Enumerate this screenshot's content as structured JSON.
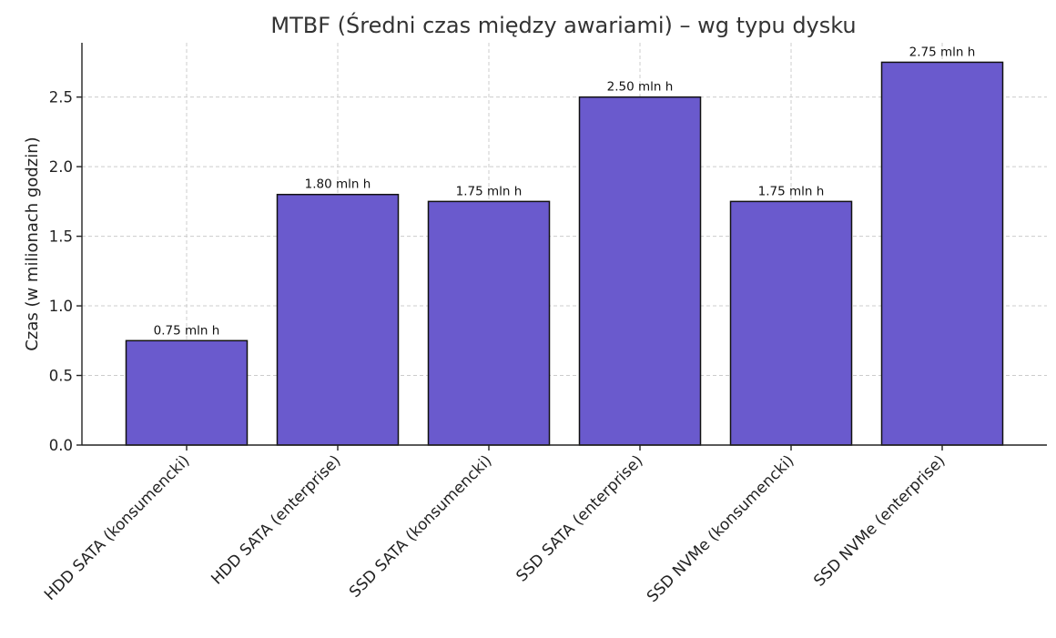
{
  "chart_data": {
    "type": "bar",
    "title": "MTBF (Średni czas między awariami) – wg typu dysku",
    "xlabel": "",
    "ylabel": "Czas (w milionach godzin)",
    "categories": [
      "HDD SATA (konsumencki)",
      "HDD SATA (enterprise)",
      "SSD SATA (konsumencki)",
      "SSD SATA (enterprise)",
      "SSD NVMe (konsumencki)",
      "SSD NVMe (enterprise)"
    ],
    "values": [
      0.75,
      1.8,
      1.75,
      2.5,
      1.75,
      2.75
    ],
    "data_labels": [
      "0.75 mln h",
      "1.80 mln h",
      "1.75 mln h",
      "2.50 mln h",
      "1.75 mln h",
      "2.75 mln h"
    ],
    "yticks": [
      "0.0",
      "0.5",
      "1.0",
      "1.5",
      "2.0",
      "2.5"
    ],
    "ylim": [
      0,
      2.89
    ],
    "grid": true,
    "colors": {
      "bar": "#6a5acd"
    }
  }
}
